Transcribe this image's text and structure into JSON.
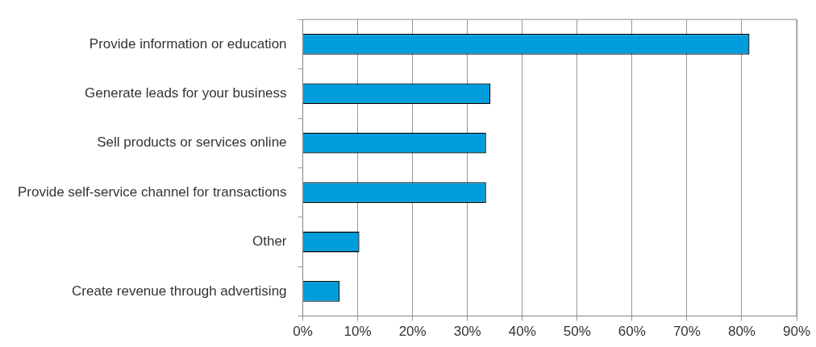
{
  "chart_data": {
    "type": "bar",
    "orientation": "horizontal",
    "categories": [
      "Provide information or education",
      "Generate leads for your business",
      "Sell products or services online",
      "Provide self-service channel for transactions",
      "Other",
      "Create revenue through advertising"
    ],
    "values": [
      81.4,
      34.2,
      33.4,
      33.4,
      10.3,
      6.7
    ],
    "color": "#009ddc",
    "xlim": [
      0,
      90
    ],
    "xticks": [
      {
        "value": 0,
        "label": "0%"
      },
      {
        "value": 10,
        "label": "10%"
      },
      {
        "value": 20,
        "label": "20%"
      },
      {
        "value": 30,
        "label": "30%"
      },
      {
        "value": 40,
        "label": "40%"
      },
      {
        "value": 50,
        "label": "50%"
      },
      {
        "value": 60,
        "label": "60%"
      },
      {
        "value": 70,
        "label": "70%"
      },
      {
        "value": 80,
        "label": "80%"
      },
      {
        "value": 90,
        "label": "90%"
      }
    ],
    "grid": "x",
    "legend": false
  }
}
